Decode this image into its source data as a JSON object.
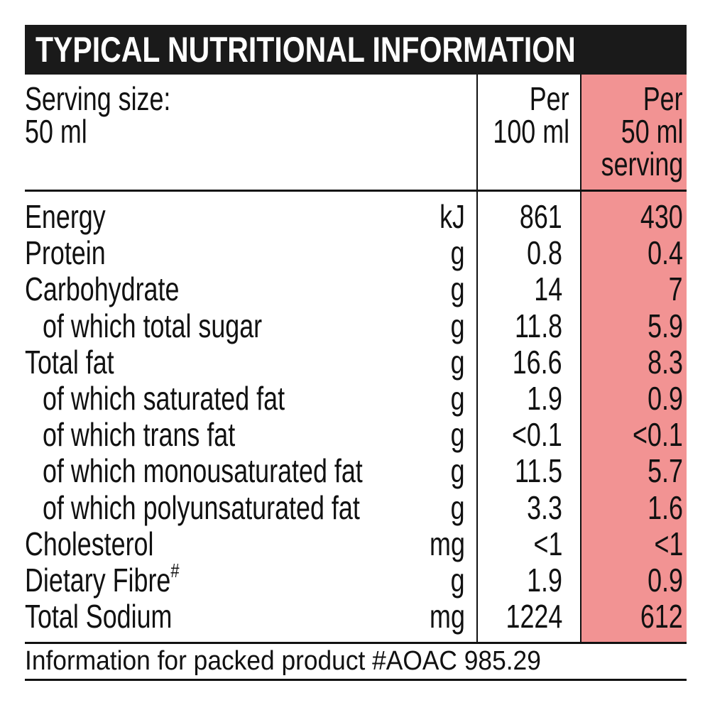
{
  "title": "TYPICAL NUTRITIONAL INFORMATION",
  "header": {
    "serving_label": "Serving size:",
    "serving_value": "50 ml",
    "col1_line1": "Per",
    "col1_line2": "100 ml",
    "col2_line1": "Per",
    "col2_line2": "50 ml",
    "col2_line3": "serving"
  },
  "highlight_color": "#f29393",
  "rows": [
    {
      "label": "Energy",
      "unit": "kJ",
      "per100": "861",
      "perServing": "430",
      "indent": false
    },
    {
      "label": "Protein",
      "unit": "g",
      "per100": "0.8",
      "perServing": "0.4",
      "indent": false
    },
    {
      "label": "Carbohydrate",
      "unit": "g",
      "per100": "14",
      "perServing": "7",
      "indent": false
    },
    {
      "label": "of which total sugar",
      "unit": "g",
      "per100": "11.8",
      "perServing": "5.9",
      "indent": true
    },
    {
      "label": "Total fat",
      "unit": "g",
      "per100": "16.6",
      "perServing": "8.3",
      "indent": false
    },
    {
      "label": "of which saturated fat",
      "unit": "g",
      "per100": "1.9",
      "perServing": "0.9",
      "indent": true
    },
    {
      "label": "of which trans fat",
      "unit": "g",
      "per100": "<0.1",
      "perServing": "<0.1",
      "indent": true
    },
    {
      "label": "of which monousaturated fat",
      "unit": "g",
      "per100": "11.5",
      "perServing": "5.7",
      "indent": true
    },
    {
      "label": "of which polyunsaturated fat",
      "unit": "g",
      "per100": "3.3",
      "perServing": "1.6",
      "indent": true
    },
    {
      "label": "Cholesterol",
      "unit": "mg",
      "per100": "<1",
      "perServing": "<1",
      "indent": false
    },
    {
      "label": "Dietary Fibre",
      "sup": "#",
      "unit": "g",
      "per100": "1.9",
      "perServing": "0.9",
      "indent": false
    },
    {
      "label": "Total Sodium",
      "unit": "mg",
      "per100": "1224",
      "perServing": "612",
      "indent": false
    }
  ],
  "footer": "Information for packed product #AOAC 985.29"
}
